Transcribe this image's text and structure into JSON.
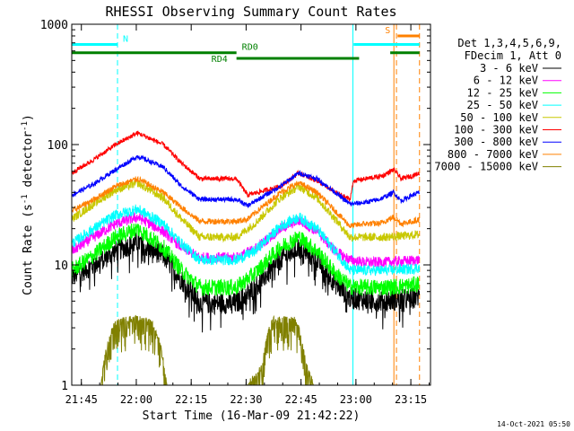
{
  "chart_data": {
    "type": "line",
    "title": "RHESSI Observing Summary Count Rates",
    "xlabel": "Start Time (16-Mar-09 21:42:22)",
    "ylabel_main": "Count Rate (s",
    "ylabel_sup1": "-1",
    "ylabel_mid": " detector",
    "ylabel_sup2": "-1",
    "ylabel_end": ")",
    "x_ticks": [
      "21:45",
      "22:00",
      "22:15",
      "22:30",
      "22:45",
      "23:00",
      "23:15"
    ],
    "x_tick_minutes": [
      2.63,
      17.63,
      32.63,
      47.63,
      62.63,
      77.63,
      92.63
    ],
    "xlim_minutes": [
      0,
      98
    ],
    "y_scale": "log",
    "ylim": [
      1,
      1000
    ],
    "y_ticks": [
      "1",
      "10",
      "100",
      "1000"
    ],
    "legend_header": [
      "Det 1,3,4,5,6,9,",
      "FDecim 1, Att 0"
    ],
    "legend_placement": "right",
    "series": [
      {
        "name": "3 - 6 keV",
        "color": "#000000",
        "points": [
          [
            0,
            8
          ],
          [
            6,
            10
          ],
          [
            12,
            13
          ],
          [
            18,
            15.5
          ],
          [
            25,
            12
          ],
          [
            30,
            7.5
          ],
          [
            35,
            4.8
          ],
          [
            45,
            4.8
          ],
          [
            50,
            6.5
          ],
          [
            57,
            11
          ],
          [
            62,
            14
          ],
          [
            67,
            11
          ],
          [
            72,
            7
          ],
          [
            76,
            5.3
          ],
          [
            80,
            5.1
          ],
          [
            85,
            5
          ],
          [
            92,
            5.2
          ],
          [
            95,
            5.5
          ]
        ]
      },
      {
        "name": "6 - 12 keV",
        "color": "#ff00ff",
        "points": [
          [
            0,
            13
          ],
          [
            6,
            17
          ],
          [
            12,
            22
          ],
          [
            18,
            25
          ],
          [
            25,
            19
          ],
          [
            30,
            14
          ],
          [
            35,
            11.5
          ],
          [
            45,
            11.5
          ],
          [
            50,
            13.5
          ],
          [
            57,
            20
          ],
          [
            62,
            23.5
          ],
          [
            67,
            19
          ],
          [
            72,
            13
          ],
          [
            76,
            11
          ],
          [
            80,
            10.5
          ],
          [
            85,
            10.5
          ],
          [
            92,
            10.8
          ],
          [
            95,
            11
          ]
        ]
      },
      {
        "name": "12 - 25 keV",
        "color": "#00ff00",
        "points": [
          [
            0,
            9
          ],
          [
            6,
            12
          ],
          [
            12,
            17
          ],
          [
            18,
            20
          ],
          [
            25,
            14
          ],
          [
            30,
            9
          ],
          [
            35,
            6.5
          ],
          [
            45,
            6.5
          ],
          [
            50,
            8.5
          ],
          [
            57,
            14
          ],
          [
            62,
            17
          ],
          [
            67,
            13
          ],
          [
            72,
            8.5
          ],
          [
            76,
            6.6
          ],
          [
            80,
            6.5
          ],
          [
            85,
            6.5
          ],
          [
            92,
            6.7
          ],
          [
            95,
            7
          ]
        ]
      },
      {
        "name": "25 - 50 keV",
        "color": "#00ffff",
        "points": [
          [
            0,
            15
          ],
          [
            6,
            20
          ],
          [
            12,
            26
          ],
          [
            18,
            29
          ],
          [
            25,
            22
          ],
          [
            30,
            15
          ],
          [
            35,
            11
          ],
          [
            45,
            11
          ],
          [
            50,
            13
          ],
          [
            57,
            21
          ],
          [
            62,
            25
          ],
          [
            67,
            20
          ],
          [
            72,
            13
          ],
          [
            76,
            9
          ],
          [
            80,
            9
          ],
          [
            85,
            9
          ],
          [
            92,
            9.2
          ],
          [
            95,
            9.5
          ]
        ]
      },
      {
        "name": "50 - 100 keV",
        "color": "#c8c800",
        "points": [
          [
            0,
            24
          ],
          [
            6,
            32
          ],
          [
            12,
            42
          ],
          [
            18,
            48
          ],
          [
            25,
            36
          ],
          [
            30,
            24
          ],
          [
            35,
            17
          ],
          [
            45,
            17
          ],
          [
            50,
            22
          ],
          [
            57,
            36
          ],
          [
            62,
            45
          ],
          [
            67,
            36
          ],
          [
            72,
            24
          ],
          [
            76,
            17
          ],
          [
            80,
            17
          ],
          [
            85,
            17
          ],
          [
            92,
            17.5
          ],
          [
            95,
            18
          ]
        ]
      },
      {
        "name": "100 - 300 keV",
        "color": "#ff0000",
        "points": [
          [
            0,
            58
          ],
          [
            6,
            75
          ],
          [
            12,
            100
          ],
          [
            18,
            125
          ],
          [
            25,
            100
          ],
          [
            30,
            70
          ],
          [
            35,
            52
          ],
          [
            45,
            52
          ],
          [
            48,
            38
          ],
          [
            57,
            45
          ],
          [
            62,
            58
          ],
          [
            67,
            50
          ],
          [
            72,
            40
          ],
          [
            76,
            35
          ],
          [
            77,
            50
          ],
          [
            82,
            53
          ],
          [
            85,
            55
          ],
          [
            88,
            62
          ],
          [
            90,
            52
          ],
          [
            93,
            55
          ],
          [
            95,
            58
          ]
        ]
      },
      {
        "name": "300 - 800 keV",
        "color": "#0000ff",
        "points": [
          [
            0,
            38
          ],
          [
            6,
            47
          ],
          [
            12,
            62
          ],
          [
            18,
            80
          ],
          [
            25,
            65
          ],
          [
            30,
            45
          ],
          [
            35,
            35
          ],
          [
            45,
            35
          ],
          [
            48,
            31
          ],
          [
            57,
            45
          ],
          [
            62,
            58
          ],
          [
            67,
            52
          ],
          [
            72,
            40
          ],
          [
            76,
            32
          ],
          [
            80,
            33
          ],
          [
            84,
            35
          ],
          [
            88,
            40
          ],
          [
            90,
            34
          ],
          [
            93,
            38
          ],
          [
            95,
            40
          ]
        ]
      },
      {
        "name": "800 - 7000 keV",
        "color": "#ff8000",
        "points": [
          [
            0,
            28
          ],
          [
            6,
            35
          ],
          [
            12,
            45
          ],
          [
            18,
            52
          ],
          [
            25,
            40
          ],
          [
            30,
            30
          ],
          [
            35,
            23
          ],
          [
            45,
            23
          ],
          [
            48,
            24
          ],
          [
            57,
            40
          ],
          [
            62,
            48
          ],
          [
            67,
            40
          ],
          [
            72,
            28
          ],
          [
            76,
            21
          ],
          [
            80,
            22
          ],
          [
            84,
            22
          ],
          [
            88,
            25
          ],
          [
            90,
            22
          ],
          [
            93,
            23
          ],
          [
            95,
            24
          ]
        ]
      },
      {
        "name": "7000 - 15000 keV",
        "color": "#808000",
        "points": [
          [
            0,
            1
          ],
          [
            8,
            1
          ],
          [
            9,
            1.7
          ],
          [
            10,
            2.3
          ],
          [
            11,
            2.8
          ],
          [
            12,
            3.3
          ],
          [
            17,
            3.6
          ],
          [
            22,
            3.3
          ],
          [
            23,
            2.8
          ],
          [
            24,
            2.3
          ],
          [
            25,
            1.6
          ],
          [
            26,
            1
          ],
          [
            48,
            1
          ],
          [
            52,
            1.4
          ],
          [
            53,
            2.2
          ],
          [
            54,
            3.0
          ],
          [
            55,
            3.5
          ],
          [
            61,
            3.5
          ],
          [
            62,
            3.0
          ],
          [
            63,
            2.2
          ],
          [
            64,
            1.5
          ],
          [
            66,
            1
          ],
          [
            95,
            1
          ]
        ]
      }
    ],
    "flags": [
      {
        "label": "N",
        "color": "#00ffff",
        "y": 680,
        "segments": [
          [
            0,
            12.5
          ],
          [
            77,
            95
          ]
        ]
      },
      {
        "label": "RD0",
        "color": "#008000",
        "y": 580,
        "segments": [
          [
            0,
            45
          ],
          [
            87,
            95
          ]
        ]
      },
      {
        "label": "RD4",
        "color": "#008000",
        "y": 520,
        "segments": [
          [
            45,
            78.5
          ]
        ]
      },
      {
        "label": "S",
        "color": "#ff8000",
        "y": 800,
        "segments": [
          [
            89,
            95
          ]
        ]
      }
    ],
    "vlines": [
      {
        "color": "#00ffff",
        "x": 0,
        "style": "solid"
      },
      {
        "color": "#00ffff",
        "x": 12.5,
        "style": "dashed"
      },
      {
        "color": "#00ffff",
        "x": 76.8,
        "style": "solid"
      },
      {
        "color": "#ff8000",
        "x": 88.0,
        "style": "solid"
      },
      {
        "color": "#ff8000",
        "x": 88.7,
        "style": "dashed"
      },
      {
        "color": "#ff8000",
        "x": 95.0,
        "style": "dashed"
      }
    ]
  },
  "footer": {
    "timestamp": "14-Oct-2021 05:50"
  }
}
